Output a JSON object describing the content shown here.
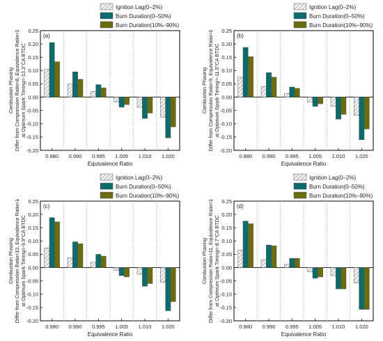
{
  "chart_data": [
    {
      "type": "bar",
      "panel_label": "(a)",
      "ylabel_lines": [
        "Combustion Phasing",
        "Differ from Compression Ratio=8, Equivalence Ratio=1",
        "at Optimum Spark Timing=-13.3°CA BTDC"
      ],
      "xlabel": "Equivalence Ratio",
      "categories": [
        "0.980",
        "0.990",
        "0.995",
        "1.005",
        "1.010",
        "1.020"
      ],
      "yticks": [
        "0.25",
        "0.20",
        "0.15",
        "0.10",
        "0.05",
        "0.00",
        "-0.05",
        "-0.10",
        "-0.15",
        "-0.20"
      ],
      "ylim": [
        -0.2,
        0.25
      ],
      "series": [
        {
          "name": "Ignition Lag(0–2%)",
          "values": [
            0.104,
            0.049,
            0.021,
            -0.018,
            -0.038,
            -0.075
          ]
        },
        {
          "name": "Burn Duration(0–50%)",
          "values": [
            0.205,
            0.095,
            0.047,
            -0.038,
            -0.08,
            -0.153
          ]
        },
        {
          "name": "Burn Duration(10%–90%)",
          "values": [
            0.133,
            0.067,
            0.035,
            -0.028,
            -0.06,
            -0.112
          ]
        }
      ],
      "legend_position": "top-right"
    },
    {
      "type": "bar",
      "panel_label": "(b)",
      "ylabel_lines": [
        "Combustion Phasing",
        "Differ from Compression Ratio=9, Equivalence Ratio=1",
        "at Optimum Spark Timing=-11.5°CA BTDC"
      ],
      "xlabel": "Equivalence Ratio",
      "categories": [
        "0.980",
        "0.990",
        "0.995",
        "1.005",
        "1.010",
        "1.020"
      ],
      "yticks": [
        "0.25",
        "0.20",
        "0.15",
        "0.10",
        "0.05",
        "0.00",
        "-0.05",
        "-0.10",
        "-0.15",
        "-0.20"
      ],
      "ylim": [
        -0.2,
        0.25
      ],
      "series": [
        {
          "name": "Ignition Lag(0–2%)",
          "values": [
            0.075,
            0.04,
            0.013,
            -0.018,
            -0.035,
            -0.068
          ]
        },
        {
          "name": "Burn Duration(0–50%)",
          "values": [
            0.187,
            0.092,
            0.038,
            -0.035,
            -0.083,
            -0.16
          ]
        },
        {
          "name": "Burn Duration(10%–90%)",
          "values": [
            0.152,
            0.075,
            0.033,
            -0.025,
            -0.065,
            -0.12
          ]
        }
      ],
      "legend_position": "top-right"
    },
    {
      "type": "bar",
      "panel_label": "(c)",
      "ylabel_lines": [
        "Combustion Phasing",
        "Differ from Compression Ratio=10, Equivalence Ratio=1",
        "at Optimum Spark Timing=-9.9°CA BTDC"
      ],
      "xlabel": "Equivalence Ratio",
      "categories": [
        "0.980",
        "0.990",
        "0.995",
        "1.005",
        "1.010",
        "1.020"
      ],
      "yticks": [
        "0.25",
        "0.20",
        "0.15",
        "0.10",
        "0.05",
        "0.00",
        "-0.05",
        "-0.10",
        "-0.15",
        "-0.20"
      ],
      "ylim": [
        -0.2,
        0.25
      ],
      "series": [
        {
          "name": "Ignition Lag(0–2%)",
          "values": [
            0.074,
            0.037,
            0.02,
            -0.01,
            -0.025,
            -0.055
          ]
        },
        {
          "name": "Burn Duration(0–50%)",
          "values": [
            0.188,
            0.097,
            0.05,
            -0.03,
            -0.07,
            -0.162
          ]
        },
        {
          "name": "Burn Duration(10%–90%)",
          "values": [
            0.172,
            0.09,
            0.043,
            -0.035,
            -0.06,
            -0.128
          ]
        }
      ],
      "legend_position": "top-right"
    },
    {
      "type": "bar",
      "panel_label": "(d)",
      "ylabel_lines": [
        "Combustion Phasing",
        "Differ from Compression Ratio=11, Equivalence Ratio=1",
        "at Optimum Spark Timing=-8.7°CA BTDC"
      ],
      "xlabel": "Equivalence Ratio",
      "categories": [
        "0.980",
        "0.990",
        "0.995",
        "1.005",
        "1.010",
        "1.020"
      ],
      "yticks": [
        "0.25",
        "0.20",
        "0.15",
        "0.10",
        "0.05",
        "0.00",
        "-0.05",
        "-0.10",
        "-0.15",
        "-0.20"
      ],
      "ylim": [
        -0.2,
        0.25
      ],
      "series": [
        {
          "name": "Ignition Lag(0–2%)",
          "values": [
            0.065,
            0.03,
            0.012,
            -0.015,
            -0.03,
            -0.058
          ]
        },
        {
          "name": "Burn Duration(0–50%)",
          "values": [
            0.175,
            0.085,
            0.035,
            -0.04,
            -0.08,
            -0.157
          ]
        },
        {
          "name": "Burn Duration(10%–90%)",
          "values": [
            0.165,
            0.082,
            0.035,
            -0.035,
            -0.08,
            -0.157
          ]
        }
      ],
      "legend_position": "top-right"
    }
  ],
  "colors": {
    "ignition_fill": "#f2f2f2",
    "ignition_hatch": "#8a8a8a",
    "burn050_fill": "#0e6b6b",
    "burn1090_fill": "#6b6b10",
    "axis": "#000000",
    "divider": "#999999"
  }
}
